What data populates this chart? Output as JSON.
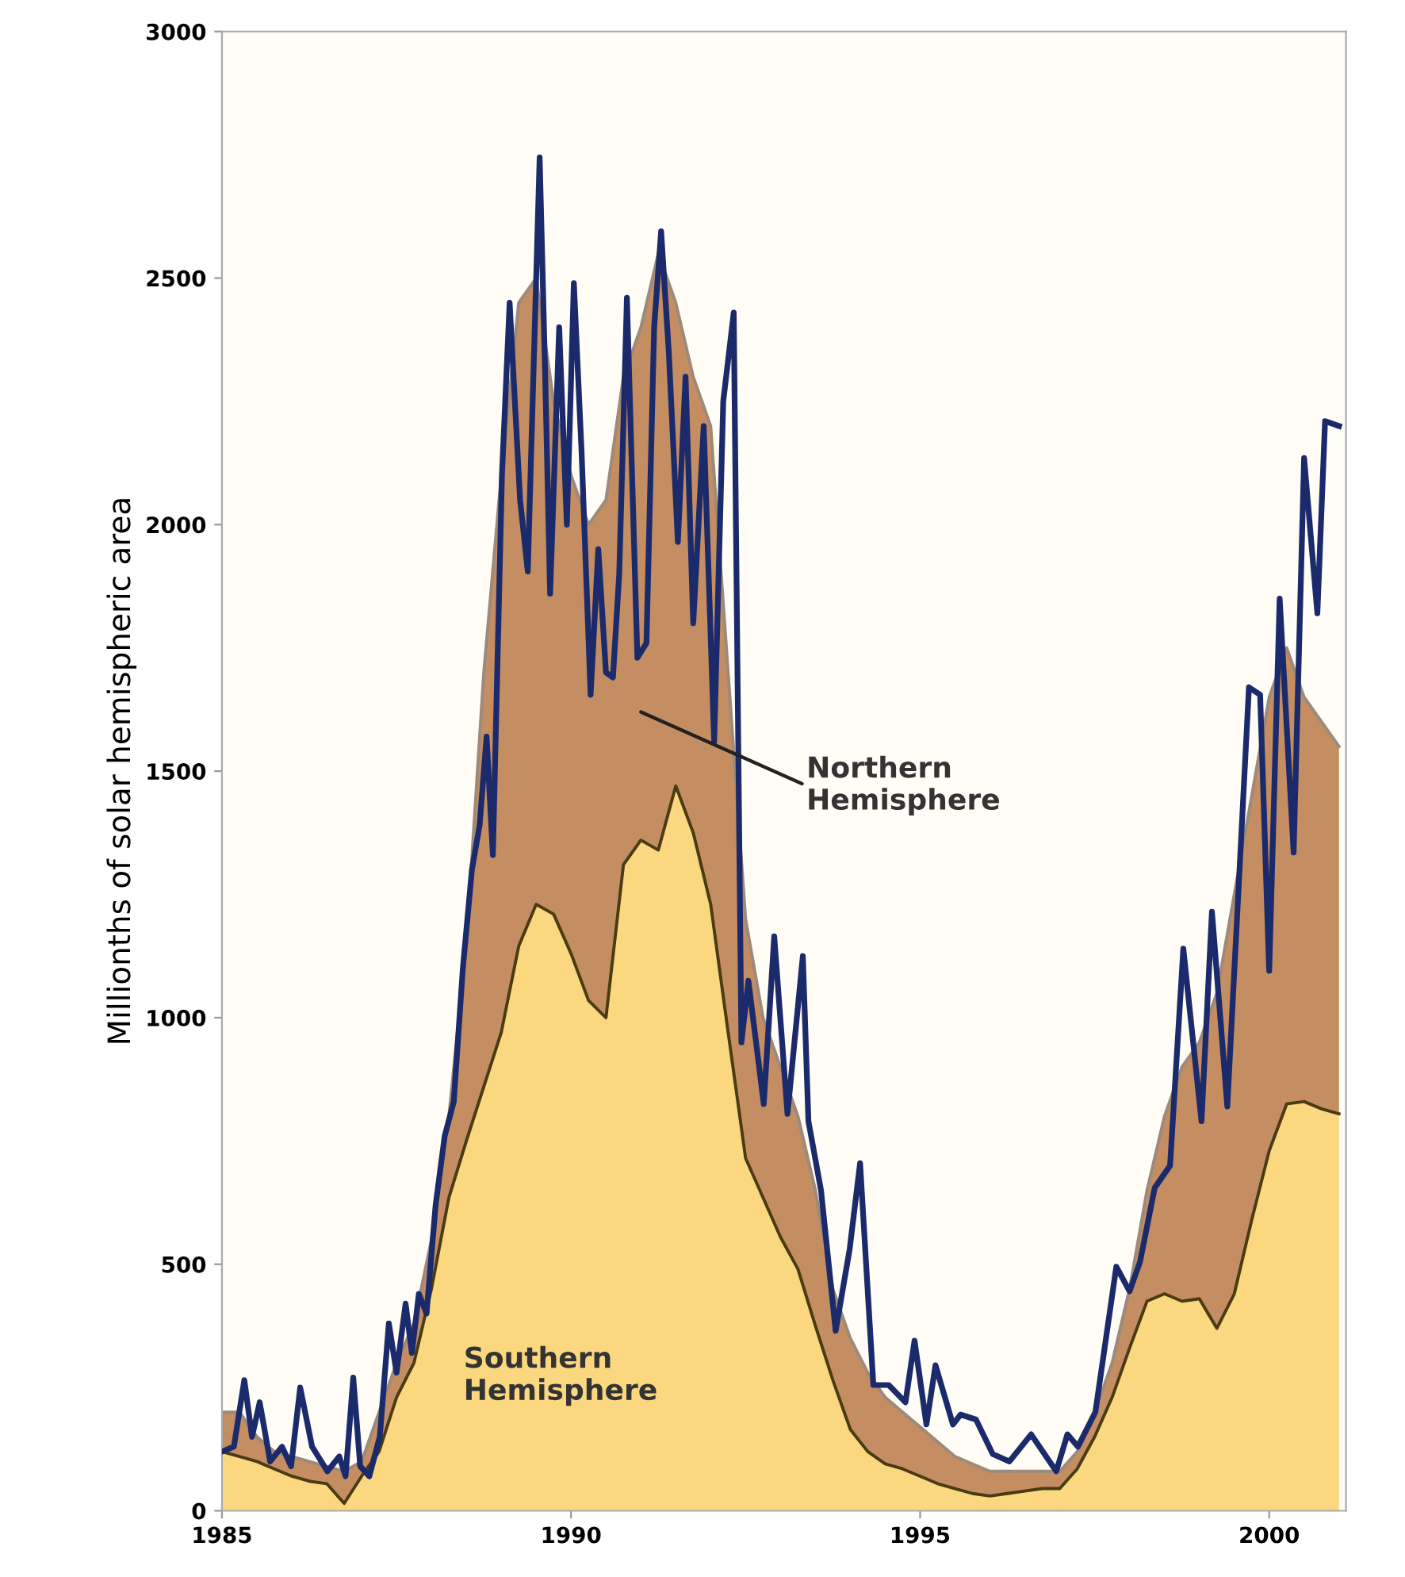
{
  "chart_data": {
    "type": "area",
    "ylabel": "Millionths of solar hemispheric area",
    "stacked": true,
    "x": [
      1985.0,
      1985.25,
      1985.5,
      1985.75,
      1986.0,
      1986.25,
      1986.5,
      1986.75,
      1987.0,
      1987.25,
      1987.5,
      1987.75,
      1988.0,
      1988.25,
      1988.5,
      1988.75,
      1989.0,
      1989.25,
      1989.5,
      1989.75,
      1990.0,
      1990.25,
      1990.5,
      1990.75,
      1991.0,
      1991.25,
      1991.5,
      1991.75,
      1992.0,
      1992.25,
      1992.5,
      1992.75,
      1993.0,
      1993.25,
      1993.5,
      1993.75,
      1994.0,
      1994.25,
      1994.5,
      1994.75,
      1995.0,
      1995.25,
      1995.5,
      1995.75,
      1996.0,
      1996.25,
      1996.5,
      1996.75,
      1997.0,
      1997.25,
      1997.5,
      1997.75,
      1998.0,
      1998.25,
      1998.5,
      1998.75,
      1999.0,
      1999.25,
      1999.5,
      1999.75,
      2000.0,
      2000.25,
      2000.5,
      2000.75,
      2001.0
    ],
    "series": [
      {
        "name": "Southern Hemisphere",
        "color": "#fbd87f",
        "values": [
          120,
          110,
          100,
          85,
          70,
          60,
          55,
          15,
          70,
          120,
          230,
          300,
          450,
          635,
          750,
          860,
          970,
          1145,
          1230,
          1210,
          1130,
          1035,
          1000,
          1310,
          1360,
          1340,
          1470,
          1375,
          1230,
          970,
          715,
          635,
          555,
          490,
          375,
          265,
          165,
          120,
          95,
          85,
          70,
          55,
          45,
          35,
          30,
          35,
          40,
          45,
          45,
          85,
          150,
          230,
          330,
          425,
          440,
          425,
          430,
          370,
          440,
          590,
          730,
          825,
          830,
          815,
          805
        ]
      },
      {
        "name": "Northern Hemisphere",
        "color": "#c48d62",
        "values": [
          80,
          90,
          50,
          35,
          40,
          40,
          35,
          65,
          30,
          80,
          70,
          80,
          100,
          165,
          400,
          840,
          1130,
          1305,
          1270,
          1040,
          970,
          965,
          1050,
          990,
          1040,
          1210,
          980,
          925,
          970,
          730,
          485,
          365,
          345,
          310,
          275,
          185,
          185,
          160,
          135,
          115,
          100,
          85,
          65,
          60,
          50,
          45,
          40,
          35,
          35,
          35,
          50,
          70,
          120,
          225,
          360,
          475,
          520,
          680,
          810,
          860,
          920,
          925,
          820,
          785,
          745
        ]
      },
      {
        "type": "line",
        "color": "#1b2a6b",
        "x": [
          1985.0,
          1985.17,
          1985.32,
          1985.43,
          1985.54,
          1985.69,
          1985.86,
          1985.99,
          1986.12,
          1986.29,
          1986.51,
          1986.68,
          1986.77,
          1986.88,
          1986.98,
          1987.11,
          1987.26,
          1987.39,
          1987.5,
          1987.63,
          1987.72,
          1987.82,
          1987.93,
          1988.06,
          1988.19,
          1988.32,
          1988.45,
          1988.58,
          1988.69,
          1988.79,
          1988.88,
          1989.01,
          1989.12,
          1989.27,
          1989.38,
          1989.55,
          1989.63,
          1989.7,
          1989.83,
          1989.94,
          1990.04,
          1990.15,
          1990.28,
          1990.39,
          1990.5,
          1990.6,
          1990.69,
          1990.8,
          1990.95,
          1991.08,
          1991.19,
          1991.29,
          1991.4,
          1991.53,
          1991.64,
          1991.75,
          1991.9,
          1992.05,
          1992.18,
          1992.33,
          1992.44,
          1992.54,
          1992.76,
          1992.91,
          1993.1,
          1993.32,
          1993.4,
          1993.58,
          1993.79,
          1993.99,
          1994.14,
          1994.33,
          1994.55,
          1994.79,
          1994.92,
          1995.09,
          1995.22,
          1995.47,
          1995.58,
          1995.8,
          1996.04,
          1996.28,
          1996.59,
          1996.95,
          1997.11,
          1997.26,
          1997.51,
          1997.81,
          1998.0,
          1998.15,
          1998.36,
          1998.58,
          1998.77,
          1999.03,
          1999.18,
          1999.4,
          1999.71,
          1999.87,
          2000.0,
          2000.15,
          2000.35,
          2000.5,
          2000.69,
          2000.8,
          2001.0
        ],
        "values": [
          120,
          130,
          265,
          150,
          220,
          100,
          130,
          90,
          250,
          130,
          80,
          110,
          70,
          270,
          90,
          70,
          150,
          380,
          280,
          420,
          320,
          440,
          400,
          620,
          760,
          830,
          1100,
          1300,
          1390,
          1570,
          1330,
          2100,
          2450,
          2050,
          1905,
          2745,
          2300,
          1860,
          2400,
          2000,
          2490,
          2150,
          1655,
          1950,
          1700,
          1690,
          1900,
          2460,
          1730,
          1760,
          2400,
          2595,
          2350,
          1965,
          2300,
          1800,
          2200,
          1560,
          2250,
          2430,
          950,
          1075,
          825,
          1165,
          805,
          1125,
          790,
          650,
          365,
          530,
          705,
          255,
          255,
          220,
          345,
          175,
          295,
          175,
          195,
          185,
          115,
          100,
          155,
          80,
          155,
          130,
          200,
          495,
          445,
          505,
          655,
          700,
          1140,
          790,
          1215,
          820,
          1670,
          1655,
          1095,
          1850,
          1335,
          2135,
          1820,
          2210,
          2200
        ]
      }
    ],
    "xlim": [
      1985,
      2001.1
    ],
    "xticks": [
      1985,
      1990,
      1995,
      2000
    ],
    "ylim": [
      0,
      3000
    ],
    "yticks": [
      0,
      500,
      1000,
      1500,
      2000,
      2500,
      3000
    ]
  }
}
